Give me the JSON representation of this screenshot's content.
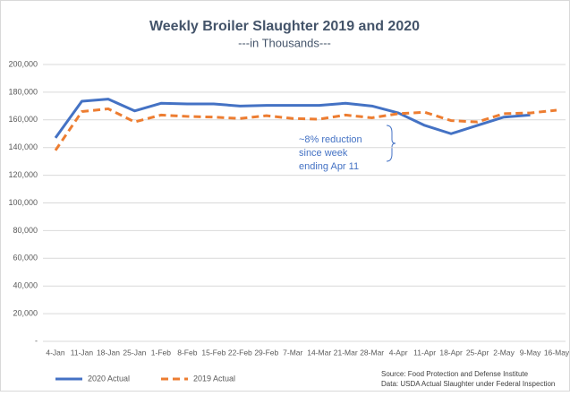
{
  "chart_data": {
    "type": "line",
    "title": "Weekly Broiler Slaughter 2019 and 2020",
    "subtitle": "---in Thousands---",
    "categories": [
      "4-Jan",
      "11-Jan",
      "18-Jan",
      "25-Jan",
      "1-Feb",
      "8-Feb",
      "15-Feb",
      "22-Feb",
      "29-Feb",
      "7-Mar",
      "14-Mar",
      "21-Mar",
      "28-Mar",
      "4-Apr",
      "11-Apr",
      "18-Apr",
      "25-Apr",
      "2-May",
      "9-May",
      "16-May"
    ],
    "series": [
      {
        "name": "2020 Actual",
        "color": "#4472c4",
        "dashed": false,
        "values": [
          147000,
          173500,
          175000,
          166500,
          172000,
          171500,
          171500,
          170000,
          170500,
          170500,
          170500,
          172000,
          170000,
          165000,
          156000,
          150000,
          156000,
          162000,
          163500,
          null
        ]
      },
      {
        "name": "2019 Actual",
        "color": "#ed7d31",
        "dashed": true,
        "values": [
          138000,
          166000,
          168000,
          158500,
          163500,
          162500,
          162000,
          161000,
          163000,
          161000,
          160500,
          163500,
          161500,
          164500,
          165500,
          159500,
          158500,
          164500,
          165000,
          167000
        ]
      }
    ],
    "ylim": [
      0,
      200000
    ],
    "yticks": [
      {
        "value": 0,
        "label": "-"
      },
      {
        "value": 20000,
        "label": "20,000"
      },
      {
        "value": 40000,
        "label": "40,000"
      },
      {
        "value": 60000,
        "label": "60,000"
      },
      {
        "value": 80000,
        "label": "80,000"
      },
      {
        "value": 100000,
        "label": "100,000"
      },
      {
        "value": 120000,
        "label": "120,000"
      },
      {
        "value": 140000,
        "label": "140,000"
      },
      {
        "value": 160000,
        "label": "160,000"
      },
      {
        "value": 180000,
        "label": "180,000"
      },
      {
        "value": 200000,
        "label": "200,000"
      }
    ],
    "grid": true,
    "legend": "bottom-left",
    "annotation": [
      "~8% reduction",
      "since week",
      "ending Apr 11"
    ],
    "source": [
      "Source: Food Protection and Defense Institute",
      "Data: USDA Actual Slaughter under Federal Inspection"
    ]
  }
}
